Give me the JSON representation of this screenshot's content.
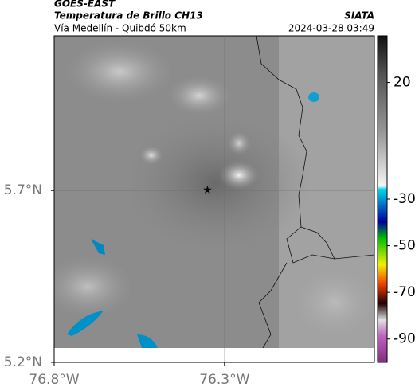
{
  "chart_data": {
    "type": "map",
    "title": "GOES-EAST",
    "subtitle": "Temperatura de Brillo CH13",
    "source": "SIATA",
    "region": "Vía Medellín - Quibdó 50km",
    "timestamp": "2024-03-28 03:49",
    "xlim": [
      -76.8,
      -75.86
    ],
    "ylim": [
      5.2,
      6.15
    ],
    "xticks": [
      {
        "value": -76.8,
        "label": "76.8°W"
      },
      {
        "value": -76.3,
        "label": "76.3°W"
      }
    ],
    "yticks": [
      {
        "value": 5.2,
        "label": "5.2°N"
      },
      {
        "value": 5.7,
        "label": "5.7°N"
      }
    ],
    "grid": true,
    "marker": {
      "x": -76.35,
      "y": 5.7
    },
    "colorbar": {
      "lim": [
        -100,
        40
      ],
      "ticks": [
        20,
        -30,
        -50,
        -70,
        -90
      ]
    }
  }
}
